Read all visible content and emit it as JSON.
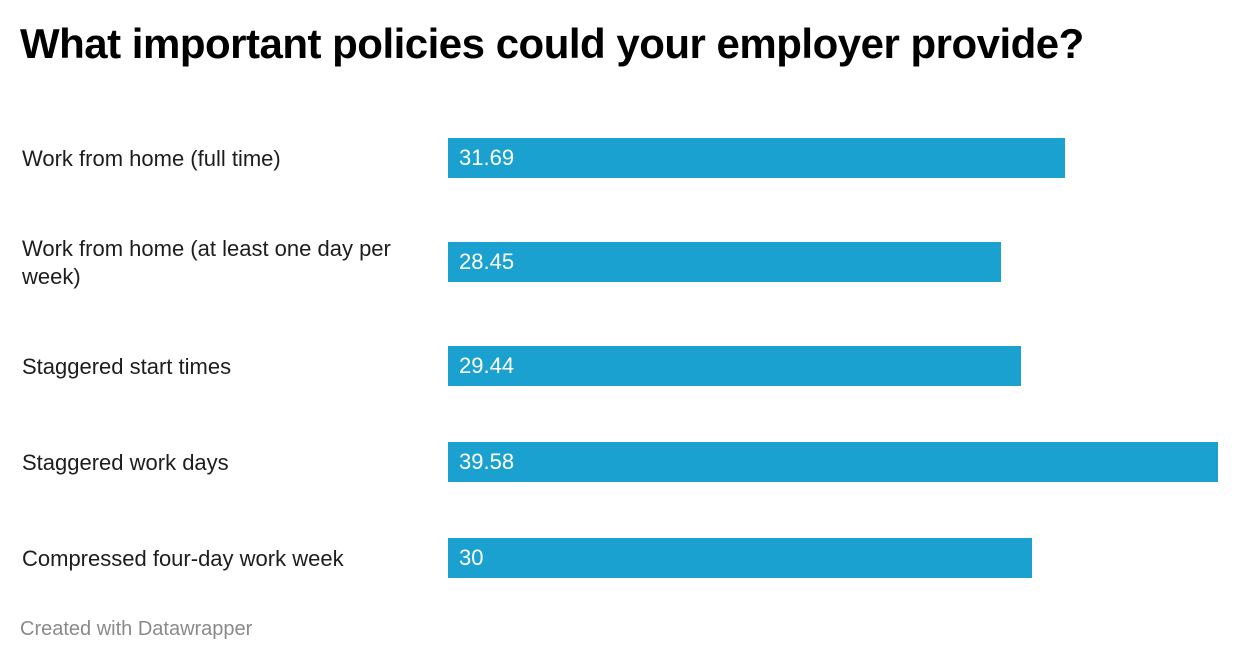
{
  "chart_data": {
    "type": "bar",
    "orientation": "horizontal",
    "title": "What important policies could your employer provide?",
    "categories": [
      "Work from home (full time)",
      "Work from home (at least one day per week)",
      "Staggered start times",
      "Staggered work days",
      "Compressed four-day work week"
    ],
    "values": [
      31.69,
      28.45,
      29.44,
      39.58,
      30
    ],
    "value_labels": [
      "31.69",
      "28.45",
      "29.44",
      "39.58",
      "30"
    ],
    "xlim": [
      0,
      39.58
    ],
    "grid": false,
    "bar_color": "#1aa1d0"
  },
  "footer": {
    "credit": "Created with Datawrapper"
  }
}
